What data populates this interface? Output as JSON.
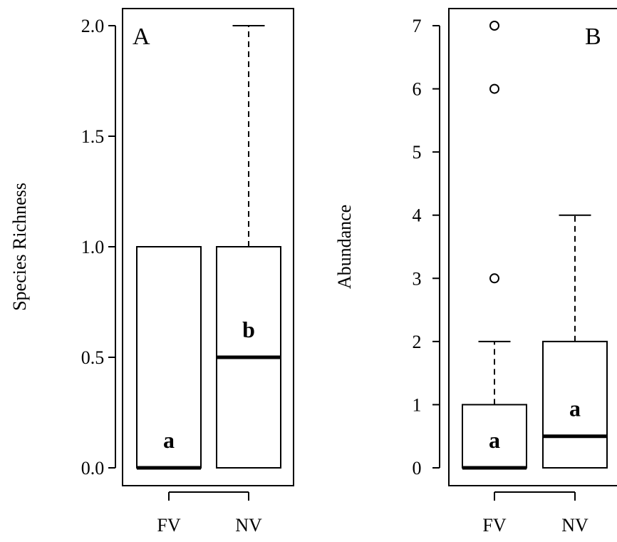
{
  "chart_data": [
    {
      "type": "boxplot",
      "panel_label": "A",
      "ylabel": "Species Richness",
      "categories": [
        "FV",
        "NV"
      ],
      "yticks": [
        "0.0",
        "0.5",
        "1.0",
        "1.5",
        "2.0"
      ],
      "ylim": [
        0,
        2
      ],
      "boxes": [
        {
          "category": "FV",
          "min": 0,
          "q1": 0,
          "median": 0,
          "q3": 1,
          "max": 1,
          "outliers": [],
          "letter": "a"
        },
        {
          "category": "NV",
          "min": 0,
          "q1": 0,
          "median": 0.5,
          "q3": 1,
          "max": 2,
          "outliers": [],
          "letter": "b"
        }
      ]
    },
    {
      "type": "boxplot",
      "panel_label": "B",
      "ylabel": "Abundance",
      "categories": [
        "FV",
        "NV"
      ],
      "yticks": [
        "0",
        "1",
        "2",
        "3",
        "4",
        "5",
        "6",
        "7"
      ],
      "ylim": [
        0,
        7
      ],
      "boxes": [
        {
          "category": "FV",
          "min": 0,
          "q1": 0,
          "median": 0,
          "q3": 1,
          "max": 2,
          "outliers": [
            3,
            6,
            7
          ],
          "letter": "a"
        },
        {
          "category": "NV",
          "min": 0,
          "q1": 0,
          "median": 0.5,
          "q3": 2,
          "max": 4,
          "outliers": [],
          "letter": "a"
        }
      ]
    }
  ]
}
